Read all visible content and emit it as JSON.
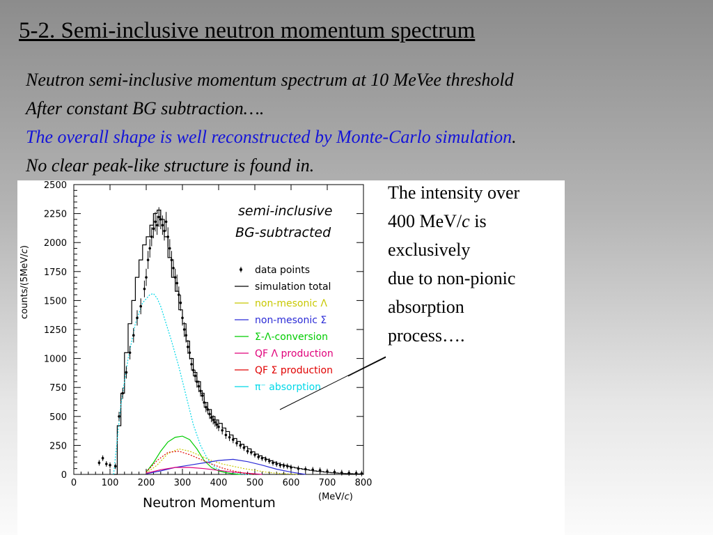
{
  "title": "5-2. Semi-inclusive neutron momentum spectrum",
  "intro": {
    "line1": "Neutron semi-inclusive momentum spectrum at 10 MeVee threshold",
    "line2": "After constant BG subtraction….",
    "line3": "The overall shape is well reconstructed by Monte-Carlo simulation",
    "line3_end": ".",
    "line4": "No clear peak-like structure is found in."
  },
  "side_note": {
    "line1": "The intensity over",
    "line2_a": "400 MeV/",
    "line2_c": "c",
    "line2_b": " is",
    "line3": "exclusively",
    "line4": "due to non-pionic",
    "line5": "absorption",
    "line6": "process…."
  },
  "chart_data": {
    "type": "line",
    "text1": "semi-inclusive",
    "text2": "BG-subtracted",
    "xlabel": "Neutron Momentum",
    "xunit_a": "(MeV/",
    "xunit_c": "c",
    "xunit_b": ")",
    "ylabel_a": "counts/(5MeV/",
    "ylabel_c": "c",
    "ylabel_b": ")",
    "xlim": [
      0,
      800
    ],
    "ylim": [
      0,
      2500
    ],
    "xticks": [
      0,
      100,
      200,
      300,
      400,
      500,
      600,
      700,
      800
    ],
    "yticks": [
      0,
      250,
      500,
      750,
      1000,
      1250,
      1500,
      1750,
      2000,
      2250,
      2500
    ],
    "legend": [
      {
        "label": "data points",
        "color": "#000000",
        "style": "marker"
      },
      {
        "label": "simulation total",
        "color": "#000000",
        "style": "solid"
      },
      {
        "label": "non-mesonic Λ",
        "color": "#c8c800",
        "style": "solid"
      },
      {
        "label": "non-mesonic Σ",
        "color": "#2a2ad6",
        "style": "solid"
      },
      {
        "label": "Σ-Λ-conversion",
        "color": "#00cc00",
        "style": "solid"
      },
      {
        "label": "QF Λ production",
        "color": "#e0007a",
        "style": "solid"
      },
      {
        "label": "QF Σ production",
        "color": "#e00000",
        "style": "solid"
      },
      {
        "label": "π⁻ absorption",
        "color": "#00d8e8",
        "style": "solid"
      }
    ],
    "series": [
      {
        "name": "simulation total",
        "color": "#000000",
        "step": true,
        "x": [
          110,
          120,
          130,
          140,
          150,
          160,
          170,
          180,
          190,
          200,
          210,
          220,
          230,
          240,
          250,
          260,
          270,
          280,
          290,
          300,
          310,
          320,
          330,
          340,
          350,
          360,
          370,
          380,
          390,
          400,
          410,
          420,
          430,
          440,
          450,
          460,
          470,
          480,
          490,
          500,
          510,
          520,
          530,
          540,
          550,
          560,
          570,
          580,
          590,
          600,
          610,
          620,
          630,
          640,
          650,
          660,
          670,
          680,
          690,
          700,
          710,
          720,
          730,
          740,
          750,
          760,
          770,
          780,
          790,
          800
        ],
        "y": [
          0,
          420,
          700,
          1050,
          1300,
          1500,
          1700,
          1850,
          1980,
          2050,
          2150,
          2250,
          2280,
          2200,
          2050,
          1870,
          1700,
          1580,
          1420,
          1300,
          1150,
          1000,
          880,
          800,
          700,
          620,
          560,
          500,
          470,
          440,
          400,
          370,
          340,
          310,
          285,
          260,
          240,
          220,
          195,
          175,
          160,
          145,
          130,
          118,
          105,
          95,
          85,
          78,
          70,
          62,
          56,
          50,
          45,
          40,
          35,
          30,
          27,
          24,
          20,
          17,
          14,
          12,
          10,
          8,
          7,
          6,
          5,
          4,
          3,
          2
        ]
      },
      {
        "name": "π⁻ absorption",
        "color": "#00d8e8",
        "dashed": true,
        "x": [
          110,
          130,
          150,
          170,
          190,
          210,
          220,
          230,
          240,
          250,
          270,
          290,
          310,
          330,
          350,
          370,
          390,
          410,
          430,
          450,
          470,
          490
        ],
        "y": [
          0,
          600,
          1000,
          1300,
          1480,
          1550,
          1560,
          1520,
          1450,
          1350,
          1150,
          930,
          680,
          430,
          250,
          130,
          60,
          25,
          10,
          5,
          2,
          0
        ]
      },
      {
        "name": "Σ-Λ-conversion",
        "color": "#00cc00",
        "x": [
          200,
          220,
          240,
          260,
          280,
          300,
          320,
          340,
          360,
          380,
          400,
          420,
          440,
          460
        ],
        "y": [
          20,
          100,
          200,
          280,
          320,
          330,
          300,
          220,
          120,
          60,
          30,
          15,
          5,
          0
        ]
      },
      {
        "name": "non-mesonic Λ",
        "color": "#c8c800",
        "dashed": true,
        "x": [
          200,
          230,
          260,
          290,
          320,
          350,
          380,
          410,
          440,
          470,
          500,
          530,
          560,
          590,
          620
        ],
        "y": [
          10,
          80,
          180,
          220,
          200,
          160,
          120,
          90,
          70,
          50,
          35,
          20,
          10,
          5,
          0
        ]
      },
      {
        "name": "non-mesonic Σ",
        "color": "#2a2ad6",
        "x": [
          200,
          240,
          280,
          320,
          360,
          400,
          440,
          480,
          520,
          560,
          600,
          640
        ],
        "y": [
          5,
          30,
          60,
          80,
          100,
          120,
          130,
          110,
          80,
          45,
          20,
          0
        ]
      },
      {
        "name": "QF Λ production",
        "color": "#e0007a",
        "x": [
          200,
          240,
          280,
          320,
          360,
          400,
          440,
          480,
          520
        ],
        "y": [
          10,
          40,
          60,
          60,
          50,
          35,
          20,
          10,
          0
        ]
      },
      {
        "name": "QF Σ production",
        "color": "#e00000",
        "dashed": true,
        "x": [
          200,
          230,
          260,
          290,
          320,
          350,
          380,
          410,
          440,
          470,
          500
        ],
        "y": [
          20,
          120,
          190,
          200,
          170,
          130,
          90,
          55,
          30,
          10,
          0
        ]
      }
    ],
    "points": {
      "name": "data points",
      "color": "#000000",
      "x": [
        70,
        80,
        90,
        100,
        115,
        125,
        135,
        145,
        155,
        165,
        175,
        185,
        195,
        200,
        205,
        210,
        215,
        220,
        225,
        230,
        235,
        240,
        245,
        250,
        255,
        260,
        265,
        270,
        275,
        280,
        285,
        290,
        295,
        300,
        305,
        310,
        315,
        320,
        325,
        330,
        335,
        340,
        345,
        350,
        355,
        360,
        365,
        370,
        375,
        380,
        385,
        390,
        395,
        400,
        410,
        420,
        430,
        440,
        450,
        460,
        470,
        480,
        490,
        500,
        510,
        520,
        530,
        540,
        550,
        560,
        570,
        580,
        590,
        600,
        620,
        640,
        660,
        680,
        700,
        720,
        740,
        760,
        780,
        795
      ],
      "y": [
        100,
        140,
        90,
        80,
        70,
        500,
        700,
        880,
        1050,
        1200,
        1350,
        1450,
        1600,
        1700,
        1850,
        1950,
        2050,
        2120,
        2180,
        2150,
        2220,
        2200,
        2150,
        2100,
        2180,
        2050,
        1950,
        1850,
        1780,
        1700,
        1650,
        1550,
        1480,
        1350,
        1250,
        1200,
        1100,
        1050,
        950,
        900,
        850,
        800,
        760,
        720,
        680,
        620,
        580,
        560,
        520,
        490,
        470,
        450,
        430,
        410,
        380,
        340,
        320,
        300,
        270,
        250,
        230,
        200,
        190,
        170,
        150,
        140,
        130,
        115,
        100,
        90,
        80,
        75,
        70,
        60,
        50,
        45,
        40,
        35,
        25,
        20,
        15,
        12,
        10,
        8
      ]
    }
  }
}
